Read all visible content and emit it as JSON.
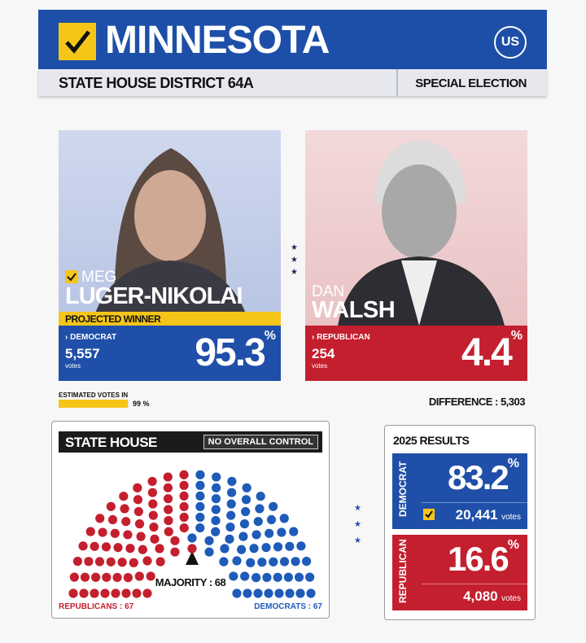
{
  "header": {
    "state": "MINNESOTA",
    "district": "STATE HOUSE DISTRICT 64A",
    "election": "SPECIAL ELECTION",
    "logo": "US"
  },
  "candidates": [
    {
      "first": "MEG",
      "last": "LUGER-NIKOLAI",
      "status": "PROJECTED WINNER",
      "party": "DEMOCRAT",
      "votes": "5,557",
      "votes_label": "votes",
      "percent": "95.3",
      "percent_sign": "%"
    },
    {
      "first": "DAN",
      "last": "WALSH",
      "party": "REPUBLICAN",
      "votes": "254",
      "votes_label": "votes",
      "percent": "4.4",
      "percent_sign": "%"
    }
  ],
  "estimated_votes": {
    "label": "ESTIMATED VOTES IN",
    "percent": 99,
    "unit": "%"
  },
  "difference": "DIFFERENCE : 5,303",
  "state_house": {
    "title": "STATE HOUSE",
    "status": "NO OVERALL CONTROL",
    "majority": "MAJORITY : 68",
    "parties": [
      {
        "label": "REPUBLICANS :",
        "seats": 67,
        "color": "#c41f2e"
      },
      {
        "label": "DEMOCRATS :",
        "seats": 67,
        "color": "#1f5bb8"
      }
    ]
  },
  "results_2025": {
    "title": "2025 RESULTS",
    "parties": [
      {
        "party": "DEMOCRAT",
        "percent": "83.2",
        "sign": "%",
        "votes": "20,441",
        "votes_label": "votes"
      },
      {
        "party": "REPUBLICAN",
        "percent": "16.6",
        "sign": "%",
        "votes": "4,080",
        "votes_label": "votes"
      }
    ]
  }
}
